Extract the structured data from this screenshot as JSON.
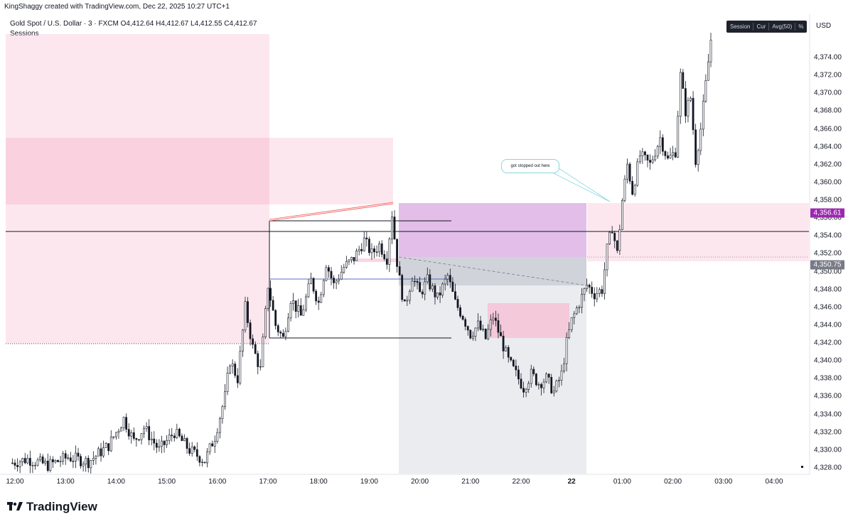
{
  "header": {
    "credit": "KingShaggy created with TradingView.com, Dec 22, 2025 10:27 UTC+1",
    "symbol_line": "Gold Spot / U.S. Dollar · 3 · FXCM",
    "ohlc": "O4,412.64  H4,412.67  L4,412.55  C4,412.67",
    "indicator_name": "Sessions",
    "session_buttons": [
      "Session",
      "Cur",
      "Avg(50)",
      "%"
    ]
  },
  "annotation": {
    "text": "got stopped out here"
  },
  "branding": {
    "name": "TradingView"
  },
  "price_labels": [
    {
      "value": "4,356.61",
      "price": 4356.61,
      "color": "#9c27b0"
    },
    {
      "value": "4,350.75",
      "price": 4350.75,
      "color": "#787b86"
    }
  ],
  "colors": {
    "candle": "#131722",
    "session_box": "#f8bbd0",
    "zone_magenta": "#ce93d8",
    "zone_grey": "#d1d4dc",
    "midline": "#5c6bc0"
  },
  "chart_data": {
    "type": "candlestick",
    "instrument": "Gold Spot / U.S. Dollar",
    "timeframe": "3",
    "source": "FXCM",
    "y_axis_unit": "USD",
    "ylim": [
      4327.5,
      4376
    ],
    "y_ticks": [
      "4,374.00",
      "4,372.00",
      "4,370.00",
      "4,368.00",
      "4,366.00",
      "4,364.00",
      "4,362.00",
      "4,360.00",
      "4,358.00",
      "4,356.00",
      "4,354.00",
      "4,352.00",
      "4,350.00",
      "4,348.00",
      "4,346.00",
      "4,344.00",
      "4,342.00",
      "4,340.00",
      "4,338.00",
      "4,336.00",
      "4,334.00",
      "4,332.00",
      "4,330.00",
      "4,328.00"
    ],
    "x_ticks": [
      {
        "label": "12:00",
        "t": 12.0
      },
      {
        "label": "13:00",
        "t": 13.0
      },
      {
        "label": "14:00",
        "t": 14.0
      },
      {
        "label": "15:00",
        "t": 15.0
      },
      {
        "label": "16:00",
        "t": 16.0
      },
      {
        "label": "17:00",
        "t": 17.0
      },
      {
        "label": "18:00",
        "t": 18.0
      },
      {
        "label": "19:00",
        "t": 19.0
      },
      {
        "label": "20:00",
        "t": 20.0
      },
      {
        "label": "21:00",
        "t": 21.0
      },
      {
        "label": "22:00",
        "t": 22.0
      },
      {
        "label": "22",
        "t": 23.0,
        "bold": true
      },
      {
        "label": "01:00",
        "t": 24.0
      },
      {
        "label": "02:00",
        "t": 25.0
      },
      {
        "label": "03:00",
        "t": 26.0
      },
      {
        "label": "04:00",
        "t": 27.0
      }
    ],
    "price_path": [
      [
        11.95,
        4328.5
      ],
      [
        12.3,
        4329.0
      ],
      [
        12.7,
        4328.3
      ],
      [
        13.1,
        4329.2
      ],
      [
        13.5,
        4328.7
      ],
      [
        13.9,
        4330.5
      ],
      [
        14.2,
        4333.5
      ],
      [
        14.4,
        4331.0
      ],
      [
        14.6,
        4332.5
      ],
      [
        14.9,
        4330.0
      ],
      [
        15.2,
        4332.0
      ],
      [
        15.5,
        4330.0
      ],
      [
        15.8,
        4328.8
      ],
      [
        16.0,
        4331.5
      ],
      [
        16.2,
        4336.0
      ],
      [
        16.3,
        4340.0
      ],
      [
        16.45,
        4338.0
      ],
      [
        16.6,
        4346.0
      ],
      [
        16.75,
        4341.5
      ],
      [
        16.9,
        4339.0
      ],
      [
        17.05,
        4348.5
      ],
      [
        17.2,
        4344.0
      ],
      [
        17.35,
        4342.5
      ],
      [
        17.5,
        4347.0
      ],
      [
        17.7,
        4345.0
      ],
      [
        17.9,
        4349.0
      ],
      [
        18.05,
        4346.5
      ],
      [
        18.2,
        4351.0
      ],
      [
        18.35,
        4348.5
      ],
      [
        18.55,
        4350.5
      ],
      [
        18.75,
        4351.5
      ],
      [
        18.95,
        4353.5
      ],
      [
        19.1,
        4352.0
      ],
      [
        19.25,
        4353.0
      ],
      [
        19.4,
        4351.5
      ],
      [
        19.5,
        4356.5
      ],
      [
        19.62,
        4350.0
      ],
      [
        19.75,
        4346.0
      ],
      [
        19.9,
        4349.5
      ],
      [
        20.05,
        4347.5
      ],
      [
        20.2,
        4349.0
      ],
      [
        20.4,
        4347.0
      ],
      [
        20.6,
        4349.5
      ],
      [
        20.75,
        4346.5
      ],
      [
        20.9,
        4345.0
      ],
      [
        21.05,
        4343.0
      ],
      [
        21.2,
        4344.0
      ],
      [
        21.35,
        4342.5
      ],
      [
        21.5,
        4345.0
      ],
      [
        21.65,
        4342.5
      ],
      [
        21.8,
        4340.0
      ],
      [
        21.95,
        4338.5
      ],
      [
        22.1,
        4337.0
      ],
      [
        22.25,
        4338.5
      ],
      [
        22.4,
        4337.5
      ],
      [
        22.55,
        4338.0
      ],
      [
        22.7,
        4336.5
      ],
      [
        22.85,
        4338.5
      ],
      [
        22.95,
        4342.0
      ],
      [
        23.05,
        4344.5
      ],
      [
        23.2,
        4346.5
      ],
      [
        23.35,
        4348.5
      ],
      [
        23.5,
        4347.5
      ],
      [
        23.65,
        4348.0
      ],
      [
        23.75,
        4352.5
      ],
      [
        23.85,
        4355.0
      ],
      [
        23.95,
        4352.0
      ],
      [
        24.05,
        4358.0
      ],
      [
        24.15,
        4362.0
      ],
      [
        24.25,
        4359.0
      ],
      [
        24.4,
        4363.0
      ],
      [
        24.6,
        4362.0
      ],
      [
        24.8,
        4365.0
      ],
      [
        24.95,
        4362.5
      ],
      [
        25.1,
        4363.5
      ],
      [
        25.2,
        4372.0
      ],
      [
        25.3,
        4368.0
      ],
      [
        25.4,
        4369.5
      ],
      [
        25.5,
        4362.5
      ],
      [
        25.6,
        4366.0
      ],
      [
        25.7,
        4371.0
      ],
      [
        25.8,
        4376.0
      ]
    ],
    "marked_levels": [
      4356.61,
      4350.75
    ],
    "annotation": "got stopped out here",
    "grid": false
  }
}
